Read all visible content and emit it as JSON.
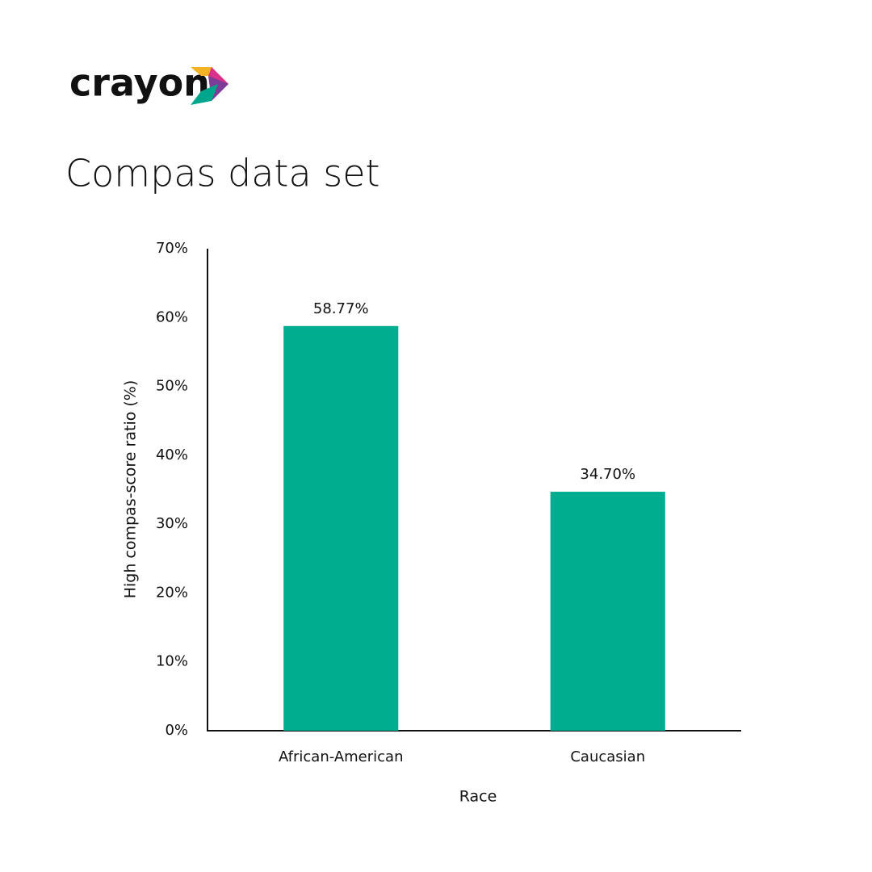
{
  "brand": "crayon",
  "chart_data": {
    "type": "bar",
    "title": "Compas data set",
    "categories": [
      "African-American",
      "Caucasian"
    ],
    "values": [
      58.77,
      34.7
    ],
    "value_labels": [
      "58.77%",
      "34.70%"
    ],
    "color": "#00ad8e",
    "x_label": "Race",
    "y_label": "High compas-score ratio (%)",
    "ylim": [
      0,
      70
    ],
    "yticks": [
      {
        "value": 0,
        "label": "0%"
      },
      {
        "value": 10,
        "label": "10%"
      },
      {
        "value": 20,
        "label": "20%"
      },
      {
        "value": 30,
        "label": "30%"
      },
      {
        "value": 40,
        "label": "40%"
      },
      {
        "value": 50,
        "label": "50%"
      },
      {
        "value": 60,
        "label": "60%"
      },
      {
        "value": 70,
        "label": "70%"
      }
    ],
    "grid": false
  }
}
